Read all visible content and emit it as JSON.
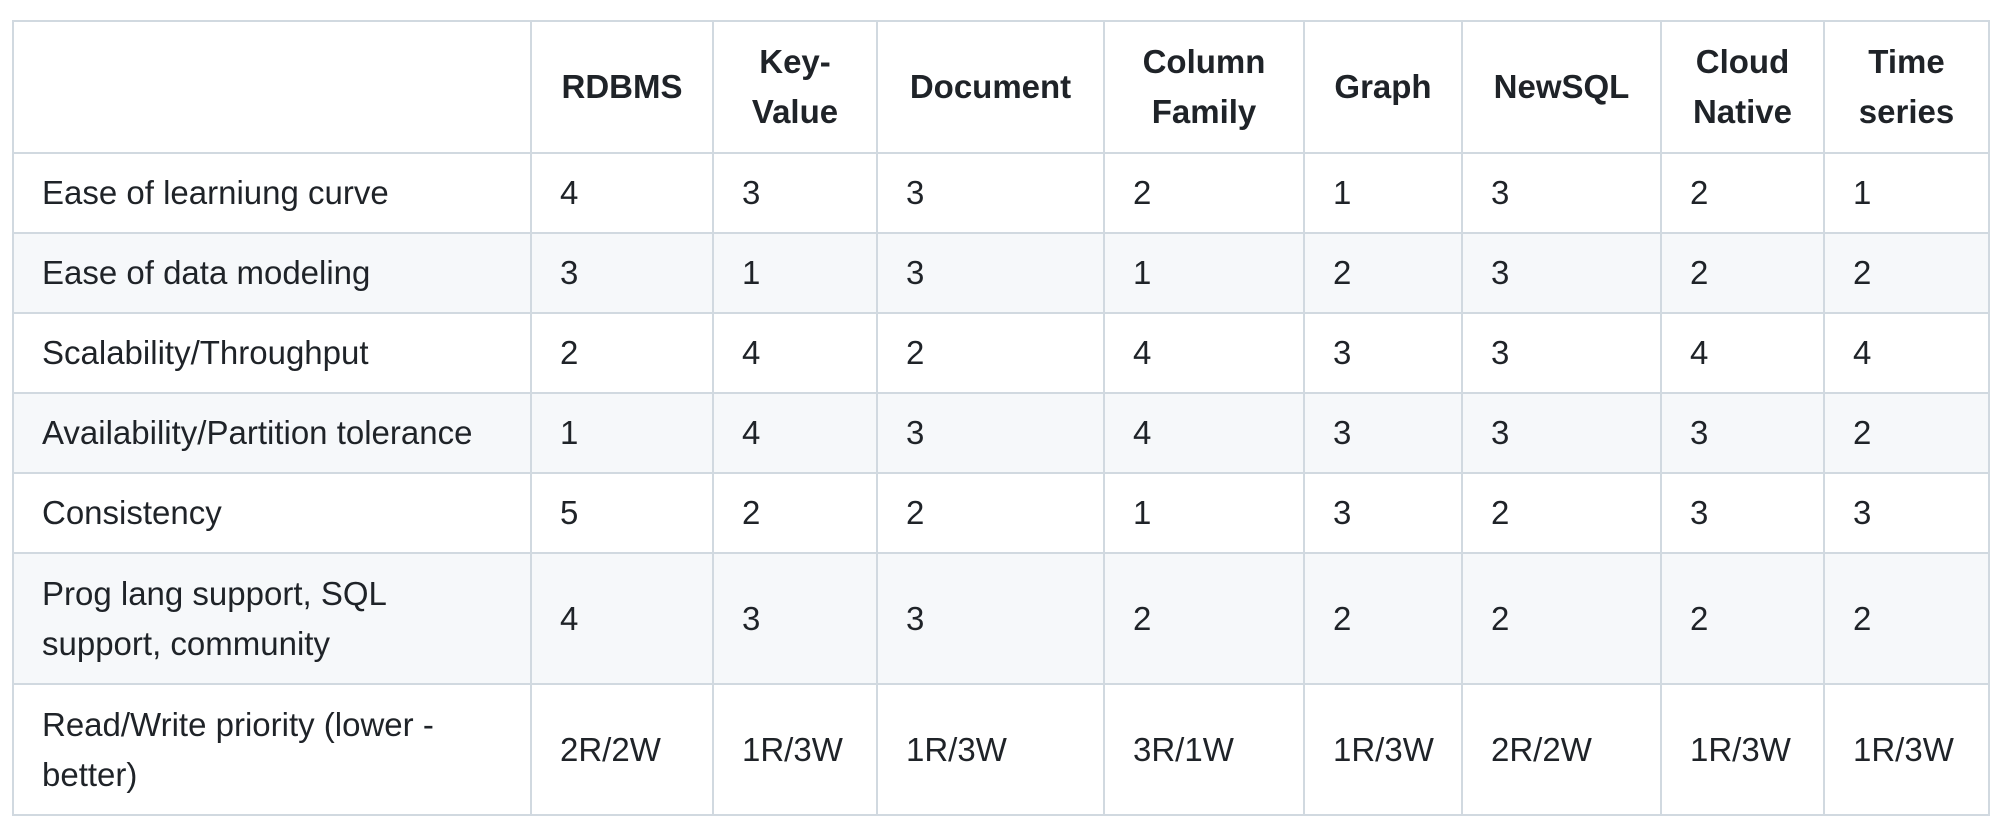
{
  "table": {
    "columns": [
      "",
      "RDBMS",
      "Key-Value",
      "Document",
      "Column Family",
      "Graph",
      "NewSQL",
      "Cloud Native",
      "Time series"
    ],
    "header_display": [
      "",
      "RDBMS",
      "Key-\nValue",
      "Document",
      "Column\nFamily",
      "Graph",
      "NewSQL",
      "Cloud\nNative",
      "Time\nseries"
    ],
    "rows": [
      {
        "label": "Ease of learniung curve",
        "values": [
          "4",
          "3",
          "3",
          "2",
          "1",
          "3",
          "2",
          "1"
        ]
      },
      {
        "label": "Ease of data modeling",
        "values": [
          "3",
          "1",
          "3",
          "1",
          "2",
          "3",
          "2",
          "2"
        ]
      },
      {
        "label": "Scalability/Throughput",
        "values": [
          "2",
          "4",
          "2",
          "4",
          "3",
          "3",
          "4",
          "4"
        ]
      },
      {
        "label": "Availability/Partition tolerance",
        "values": [
          "1",
          "4",
          "3",
          "4",
          "3",
          "3",
          "3",
          "2"
        ]
      },
      {
        "label": "Consistency",
        "values": [
          "5",
          "2",
          "2",
          "1",
          "3",
          "2",
          "3",
          "3"
        ]
      },
      {
        "label": "Prog lang support, SQL support, community",
        "values": [
          "4",
          "3",
          "3",
          "2",
          "2",
          "2",
          "2",
          "2"
        ]
      },
      {
        "label": "Read/Write priority (lower - better)",
        "values": [
          "2R/2W",
          "1R/3W",
          "1R/3W",
          "3R/1W",
          "1R/3W",
          "2R/2W",
          "1R/3W",
          "1R/3W"
        ]
      }
    ]
  }
}
